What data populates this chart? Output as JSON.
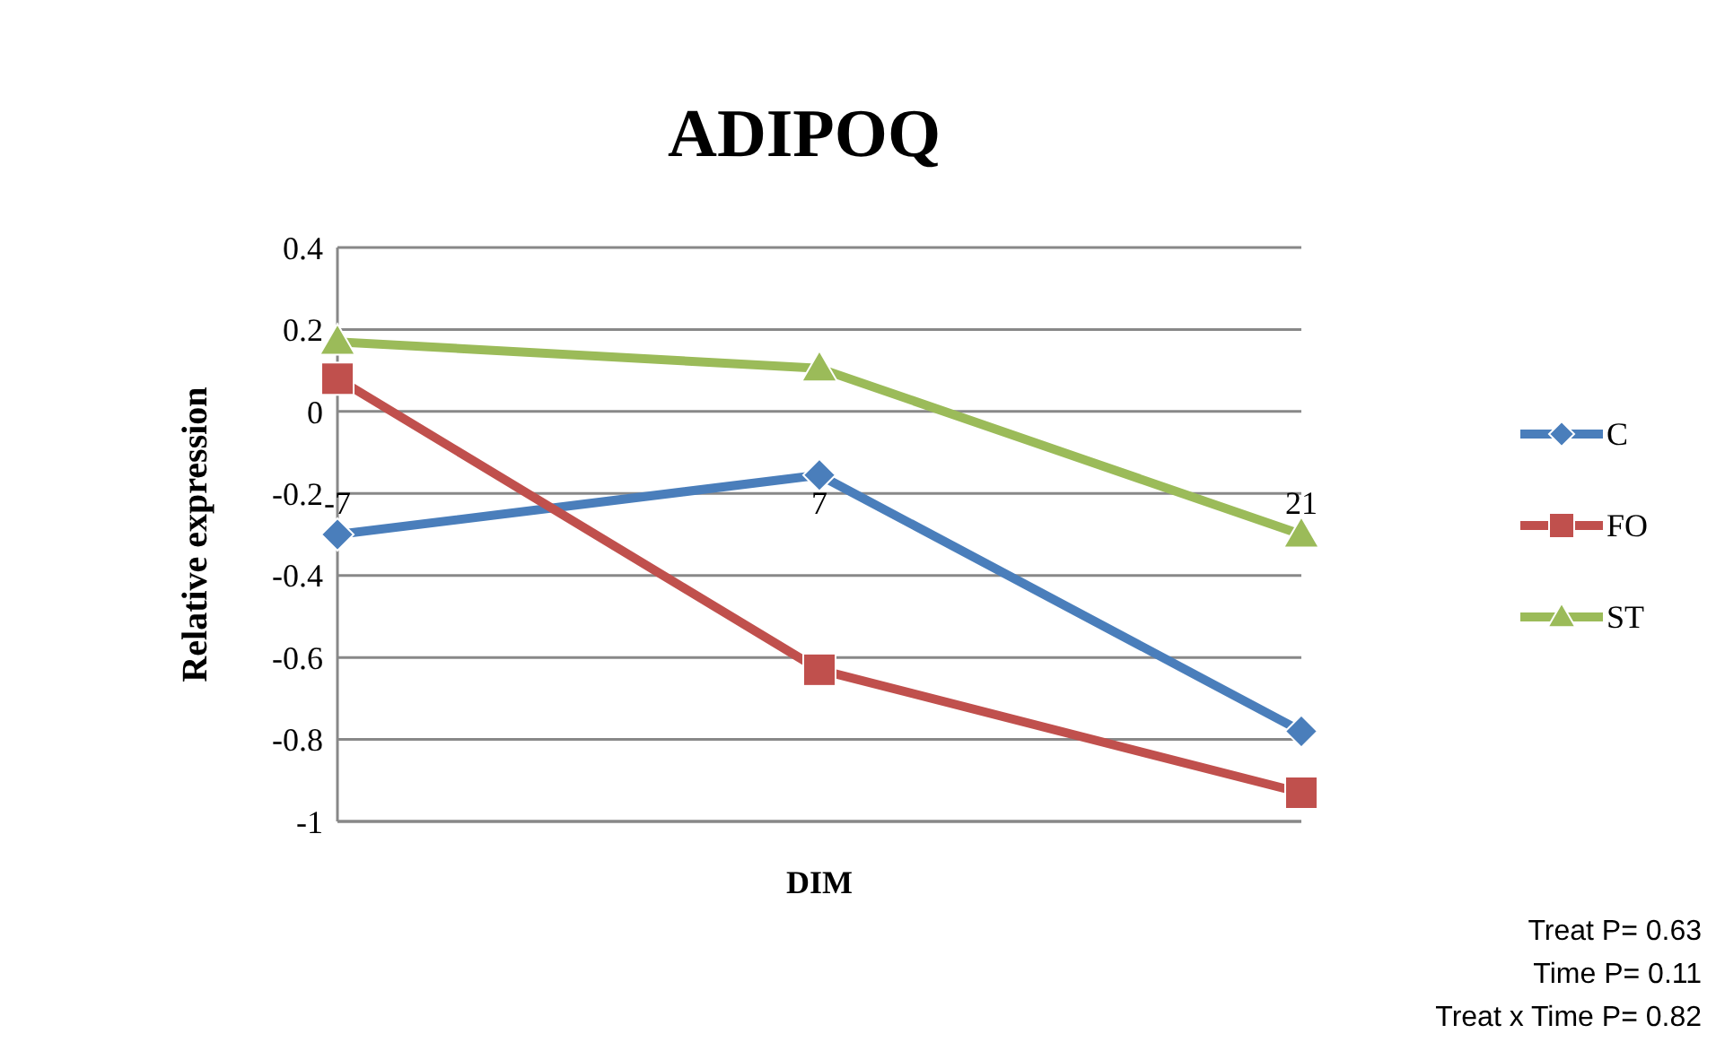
{
  "chart_data": {
    "type": "line",
    "title": "ADIPOQ",
    "xlabel": "DIM",
    "ylabel": "Relative expression",
    "categories": [
      "-7",
      "7",
      "21"
    ],
    "series": [
      {
        "name": "C",
        "color": "#4a7ebb",
        "marker": "diamond",
        "values": [
          -0.3,
          -0.155,
          -0.78
        ]
      },
      {
        "name": "FO",
        "color": "#c0504d",
        "marker": "square",
        "values": [
          0.08,
          -0.63,
          -0.93
        ]
      },
      {
        "name": "ST",
        "color": "#9bbb59",
        "marker": "triangle",
        "values": [
          0.17,
          0.105,
          -0.3
        ]
      }
    ],
    "ylim": [
      -1,
      0.4
    ],
    "yticks": [
      -1,
      -0.8,
      -0.6,
      -0.4,
      -0.2,
      0,
      0.2,
      0.4
    ],
    "grid": "y",
    "legend": "right",
    "annotations": [
      "Treat P= 0.63",
      "Time P= 0.11",
      "Treat x Time P= 0.82"
    ]
  }
}
